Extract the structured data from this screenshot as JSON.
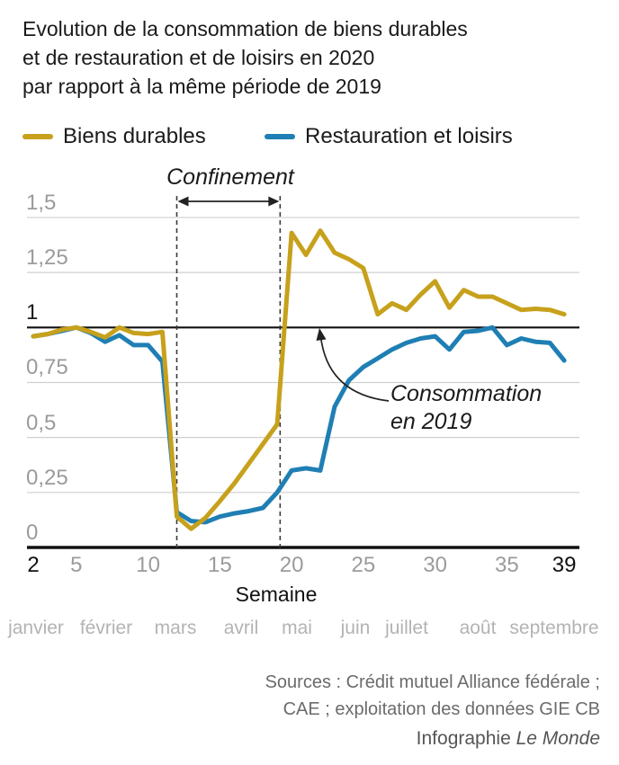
{
  "title": {
    "line1": "Evolution de la consommation de biens durables",
    "line2": "et de restauration et de loisirs en 2020",
    "line3": "par rapport à la même période de 2019"
  },
  "legend": {
    "items": [
      {
        "label": "Biens durables"
      },
      {
        "label": "Restauration et loisirs"
      }
    ]
  },
  "chart_data": {
    "type": "line",
    "x_axis_label": "Semaine",
    "xlim": [
      2,
      39
    ],
    "ylim": [
      0,
      1.5
    ],
    "baseline_value": 1,
    "x": [
      2,
      3,
      4,
      5,
      6,
      7,
      8,
      9,
      10,
      11,
      12,
      13,
      14,
      15,
      16,
      17,
      18,
      19,
      20,
      21,
      22,
      23,
      24,
      25,
      26,
      27,
      28,
      29,
      30,
      31,
      32,
      33,
      34,
      35,
      36,
      37,
      38,
      39
    ],
    "series": [
      {
        "id": "biens-durables",
        "name": "Biens durables",
        "color": "#C7A11C",
        "values": [
          0.96,
          0.97,
          0.99,
          1.0,
          0.98,
          0.955,
          1.0,
          0.975,
          0.97,
          0.98,
          0.14,
          0.085,
          0.135,
          0.21,
          0.29,
          0.38,
          0.47,
          0.56,
          1.43,
          1.33,
          1.44,
          1.34,
          1.31,
          1.27,
          1.06,
          1.11,
          1.08,
          1.15,
          1.21,
          1.09,
          1.17,
          1.14,
          1.14,
          1.11,
          1.08,
          1.085,
          1.08,
          1.06
        ]
      },
      {
        "id": "restauration-loisirs",
        "name": "Restauration et loisirs",
        "color": "#1F7FB4",
        "values": [
          0.96,
          0.97,
          0.985,
          1.0,
          0.975,
          0.935,
          0.965,
          0.92,
          0.92,
          0.845,
          0.16,
          0.12,
          0.115,
          0.14,
          0.155,
          0.165,
          0.18,
          0.25,
          0.35,
          0.36,
          0.35,
          0.64,
          0.76,
          0.82,
          0.86,
          0.9,
          0.93,
          0.95,
          0.96,
          0.9,
          0.98,
          0.985,
          1.0,
          0.92,
          0.95,
          0.935,
          0.93,
          0.85
        ]
      }
    ],
    "y_ticks": [
      {
        "value": 0,
        "label": "0"
      },
      {
        "value": 0.25,
        "label": "0,25"
      },
      {
        "value": 0.5,
        "label": "0,5"
      },
      {
        "value": 0.75,
        "label": "0,75"
      },
      {
        "value": 1,
        "label": "1",
        "emphasis": true
      },
      {
        "value": 1.25,
        "label": "1,25"
      },
      {
        "value": 1.5,
        "label": "1,5"
      }
    ],
    "x_ticks": [
      2,
      5,
      10,
      15,
      20,
      25,
      30,
      35,
      39
    ],
    "x_ticks_emphasized": [
      2,
      39
    ],
    "months": [
      "janvier",
      "février",
      "mars",
      "avril",
      "mai",
      "juin",
      "juillet",
      "août",
      "septembre"
    ],
    "confinement": {
      "label": "Confinement",
      "from_week": 12,
      "to_week": 19.2
    },
    "annotation": {
      "line1": "Consommation",
      "line2": "en 2019"
    },
    "colors": {
      "grid": "#cfcfcf",
      "axis": "#111111",
      "dashed": "#3a3a3a",
      "arrow": "#222222"
    },
    "grid": true,
    "legend_position": "top"
  },
  "footer": {
    "sources_line1": "Sources : Crédit mutuel Alliance fédérale ;",
    "sources_line2": "CAE ; exploitation des données GIE CB",
    "credit_prefix": "Infographie ",
    "credit_brand": "Le Monde"
  }
}
